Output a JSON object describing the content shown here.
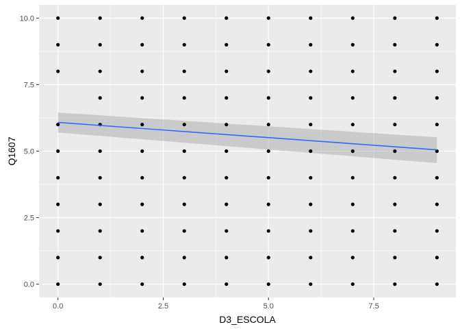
{
  "chart_data": {
    "type": "scatter",
    "xlabel": "D3_ESCOLA",
    "ylabel": "Q1607",
    "xlim": [
      -0.45,
      9.45
    ],
    "ylim": [
      -0.5,
      10.5
    ],
    "x_ticks": [
      0.0,
      2.5,
      5.0,
      7.5
    ],
    "x_tick_labels": [
      "0.0",
      "2.5",
      "5.0",
      "7.5"
    ],
    "y_ticks": [
      0.0,
      2.5,
      5.0,
      7.5,
      10.0
    ],
    "y_tick_labels": [
      "0.0",
      "2.5",
      "5.0",
      "7.5",
      "10.0"
    ],
    "grid": true,
    "points": [
      {
        "x": 0,
        "y": [
          0,
          1,
          2,
          3,
          4,
          5,
          6,
          8,
          9,
          10
        ]
      },
      {
        "x": 1,
        "y": [
          0,
          1,
          2,
          3,
          4,
          5,
          6,
          7,
          8,
          9,
          10
        ]
      },
      {
        "x": 2,
        "y": [
          0,
          1,
          2,
          3,
          4,
          5,
          6,
          7,
          8,
          9,
          10
        ]
      },
      {
        "x": 3,
        "y": [
          0,
          1,
          2,
          3,
          4,
          5,
          6,
          7,
          8,
          9,
          10
        ]
      },
      {
        "x": 4,
        "y": [
          0,
          1,
          2,
          3,
          4,
          5,
          6,
          7,
          8,
          9,
          10
        ]
      },
      {
        "x": 5,
        "y": [
          0,
          1,
          2,
          3,
          4,
          5,
          6,
          7,
          8,
          9,
          10
        ]
      },
      {
        "x": 6,
        "y": [
          0,
          1,
          2,
          3,
          4,
          5,
          6,
          7,
          8,
          9,
          10
        ]
      },
      {
        "x": 7,
        "y": [
          0,
          1,
          2,
          3,
          4,
          5,
          6,
          7,
          8,
          9,
          10
        ]
      },
      {
        "x": 8,
        "y": [
          0,
          1,
          2,
          3,
          4,
          5,
          6,
          7,
          8,
          9,
          10
        ]
      },
      {
        "x": 9,
        "y": [
          0,
          1,
          2,
          3,
          4,
          5,
          6,
          7,
          8,
          9,
          10
        ]
      }
    ],
    "trend_line": {
      "method": "linear",
      "x": [
        0,
        9
      ],
      "y": [
        6.08,
        5.05
      ],
      "ci_lower": [
        5.7,
        4.55
      ],
      "ci_upper": [
        6.45,
        5.52
      ],
      "color": "#3366FF",
      "band_color": "#999999"
    },
    "colors": {
      "panel_bg": "#EBEBEB",
      "grid_major": "#FFFFFF",
      "point": "#000000"
    }
  }
}
